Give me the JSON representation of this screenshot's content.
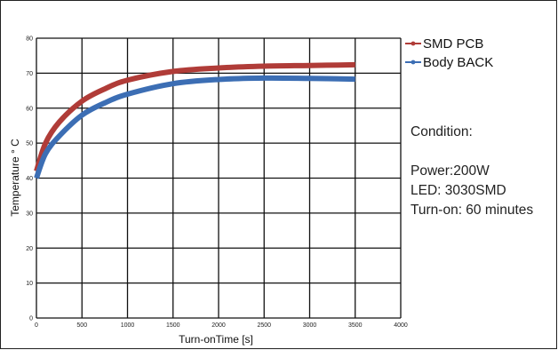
{
  "chart_data": {
    "type": "line",
    "xlabel": "Turn-onTime [s]",
    "ylabel": "Temperature ° C",
    "xlim": [
      0,
      4000
    ],
    "ylim": [
      0,
      80
    ],
    "xticks": [
      0,
      500,
      1000,
      1500,
      2000,
      2500,
      3000,
      3500,
      4000
    ],
    "yticks": [
      0,
      10,
      20,
      30,
      40,
      50,
      60,
      70,
      80
    ],
    "grid": true,
    "legend_position": "top-right",
    "series": [
      {
        "name": "SMD PCB",
        "color": "#b03c38",
        "x": [
          0,
          100,
          250,
          500,
          750,
          1000,
          1500,
          2000,
          2500,
          3000,
          3500
        ],
        "y": [
          42,
          50,
          56,
          62,
          65.5,
          68,
          70.5,
          71.5,
          72,
          72.2,
          72.4
        ]
      },
      {
        "name": "Body BACK",
        "color": "#3c6eb4",
        "x": [
          0,
          100,
          250,
          500,
          750,
          1000,
          1500,
          2000,
          2500,
          3000,
          3500
        ],
        "y": [
          40,
          47,
          52,
          58,
          61.5,
          64,
          67,
          68.2,
          68.6,
          68.5,
          68.3
        ]
      }
    ]
  },
  "notes": {
    "condition": "Condition:",
    "power": "Power:200W",
    "led": "LED: 3030SMD",
    "turn_on": "Turn-on: 60 minutes"
  }
}
